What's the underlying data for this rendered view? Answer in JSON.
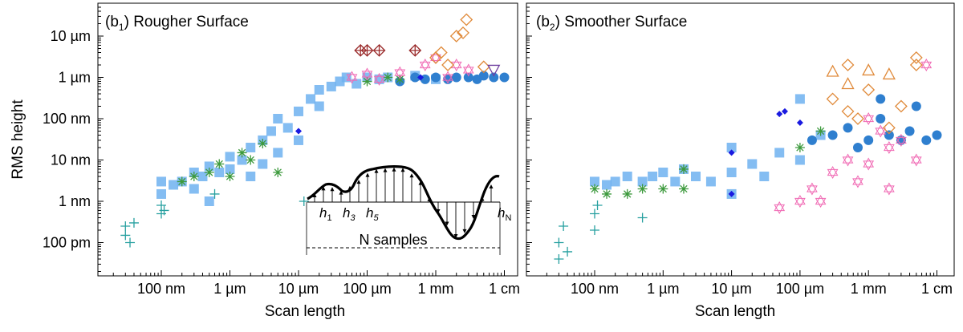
{
  "y_axis_label": "RMS height",
  "y_ticks": [
    "10 µm",
    "1 µm",
    "100 nm",
    "10 nm",
    "1 nm",
    "100 pm"
  ],
  "x_ticks": [
    "100 nm",
    "1 µm",
    "10 µm",
    "100 µm",
    "1 mm",
    "1 cm"
  ],
  "x_axis_label": "Scan length",
  "colors": {
    "light_blue": "#6eb1f0",
    "dark_blue": "#2f7fcf",
    "green": "#3d9a3d",
    "teal": "#27a0a0",
    "pink": "#f06ab4",
    "orange": "#e08a3a",
    "dark_red": "#9b2d2d",
    "purple": "#7040a0",
    "blue_diamond": "#1a1ae0"
  },
  "inset": {
    "labels": [
      {
        "main": "h",
        "sub": "1"
      },
      {
        "main": "h",
        "sub": "3"
      },
      {
        "main": "h",
        "sub": "5"
      },
      {
        "main": "h",
        "sub": "N"
      }
    ],
    "samples_label": "N samples"
  },
  "chart_data": [
    {
      "type": "scatter",
      "title": "(b1) Rougher Surface",
      "title_prefix": "(b",
      "title_sub": "1",
      "title_suffix": ") Rougher Surface",
      "xlabel": "Scan length",
      "ylabel": "RMS height",
      "x_scale": "log",
      "y_scale": "log",
      "xlim": [
        "10 nm",
        "2 cm"
      ],
      "ylim": [
        "20 pm",
        "40 µm"
      ],
      "series": [
        {
          "marker": "square",
          "color": "light_blue",
          "points": [
            [
              "100 nm",
              "3 nm"
            ],
            [
              "100 nm",
              "1.5 nm"
            ],
            [
              "150 nm",
              "2.5 nm"
            ],
            [
              "200 nm",
              "3 nm"
            ],
            [
              "300 nm",
              "5 nm"
            ],
            [
              "300 nm",
              "2 nm"
            ],
            [
              "400 nm",
              "4 nm"
            ],
            [
              "500 nm",
              "1 nm"
            ],
            [
              "500 nm",
              "7 nm"
            ],
            [
              "700 nm",
              "5 nm"
            ],
            [
              "1 µm",
              "6 nm"
            ],
            [
              "1 µm",
              "12 nm"
            ],
            [
              "1.5 µm",
              "10 nm"
            ],
            [
              "2 µm",
              "20 nm"
            ],
            [
              "2 µm",
              "4 nm"
            ],
            [
              "3 µm",
              "30 nm"
            ],
            [
              "3 µm",
              "8 nm"
            ],
            [
              "4 µm",
              "50 nm"
            ],
            [
              "5 µm",
              "15 nm"
            ],
            [
              "5 µm",
              "100 nm"
            ],
            [
              "7 µm",
              "60 nm"
            ],
            [
              "10 µm",
              "150 nm"
            ],
            [
              "10 µm",
              "30 nm"
            ],
            [
              "15 µm",
              "300 nm"
            ],
            [
              "20 µm",
              "200 nm"
            ],
            [
              "20 µm",
              "500 nm"
            ],
            [
              "30 µm",
              "600 nm"
            ],
            [
              "40 µm",
              "800 nm"
            ],
            [
              "50 µm",
              "1 µm"
            ],
            [
              "70 µm",
              "700 nm"
            ],
            [
              "100 µm",
              "1 µm"
            ],
            [
              "150 µm",
              "900 nm"
            ],
            [
              "200 µm",
              "1 µm"
            ],
            [
              "500 µm",
              "1.1 µm"
            ],
            [
              "1 mm",
              "900 nm"
            ]
          ]
        },
        {
          "marker": "circle",
          "color": "dark_blue",
          "points": [
            [
              "300 µm",
              "800 nm"
            ],
            [
              "500 µm",
              "1 µm"
            ],
            [
              "700 µm",
              "900 nm"
            ],
            [
              "1 mm",
              "1 µm"
            ],
            [
              "1.5 mm",
              "900 nm"
            ],
            [
              "2 mm",
              "1 µm"
            ],
            [
              "3 mm",
              "1 µm"
            ],
            [
              "4 mm",
              "900 nm"
            ],
            [
              "5 mm",
              "1.1 µm"
            ],
            [
              "7 mm",
              "1 µm"
            ],
            [
              "1 cm",
              "1 µm"
            ]
          ]
        },
        {
          "marker": "asterisk",
          "color": "green",
          "points": [
            [
              "200 nm",
              "3 nm"
            ],
            [
              "300 nm",
              "4 nm"
            ],
            [
              "500 nm",
              "5 nm"
            ],
            [
              "700 nm",
              "8 nm"
            ],
            [
              "1 µm",
              "4 nm"
            ],
            [
              "1.5 µm",
              "15 nm"
            ],
            [
              "2 µm",
              "10 nm"
            ],
            [
              "3 µm",
              "25 nm"
            ],
            [
              "5 µm",
              "5 nm"
            ],
            [
              "100 µm",
              "800 nm"
            ],
            [
              "200 µm",
              "1 µm"
            ],
            [
              "300 µm",
              "900 nm"
            ]
          ]
        },
        {
          "marker": "plus",
          "color": "teal",
          "points": [
            [
              "30 nm",
              "150 pm"
            ],
            [
              "30 nm",
              "250 pm"
            ],
            [
              "35 nm",
              "100 pm"
            ],
            [
              "40 nm",
              "300 pm"
            ],
            [
              "100 nm",
              "500 pm"
            ],
            [
              "100 nm",
              "800 pm"
            ],
            [
              "110 nm",
              "600 pm"
            ],
            [
              "600 nm",
              "1.5 nm"
            ],
            [
              "12 µm",
              "1 nm"
            ]
          ]
        },
        {
          "marker": "star",
          "color": "pink",
          "points": [
            [
              "60 µm",
              "1 µm"
            ],
            [
              "100 µm",
              "1.2 µm"
            ],
            [
              "150 µm",
              "900 nm"
            ],
            [
              "300 µm",
              "1.3 µm"
            ],
            [
              "700 µm",
              "2 µm"
            ],
            [
              "1 mm",
              "3 µm"
            ],
            [
              "1.5 mm",
              "1 µm"
            ],
            [
              "2 mm",
              "2 µm"
            ],
            [
              "3 mm",
              "1.5 µm"
            ]
          ]
        },
        {
          "marker": "diamond",
          "color": "orange",
          "points": [
            [
              "1 mm",
              "3 µm"
            ],
            [
              "1.2 mm",
              "4 µm"
            ],
            [
              "2 mm",
              "10 µm"
            ],
            [
              "2.5 mm",
              "12 µm"
            ],
            [
              "2.8 mm",
              "25 µm"
            ],
            [
              "1.5 mm",
              "2 µm"
            ],
            [
              "5 mm",
              "1.8 µm"
            ]
          ]
        },
        {
          "marker": "crossed-diamond",
          "color": "dark_red",
          "points": [
            [
              "80 µm",
              "4.5 µm"
            ],
            [
              "100 µm",
              "4.5 µm"
            ],
            [
              "150 µm",
              "4.5 µm"
            ],
            [
              "500 µm",
              "4.5 µm"
            ]
          ]
        },
        {
          "marker": "triangle-down",
          "color": "purple",
          "points": [
            [
              "7 mm",
              "1.5 µm"
            ]
          ]
        },
        {
          "marker": "filled-diamond",
          "color": "blue_diamond",
          "points": [
            [
              "10 µm",
              "50 nm"
            ],
            [
              "600 µm",
              "1 µm"
            ]
          ]
        }
      ]
    },
    {
      "type": "scatter",
      "title": "(b2) Smoother Surface",
      "title_prefix": "(b",
      "title_sub": "2",
      "title_suffix": ") Smoother Surface",
      "xlabel": "Scan length",
      "x_scale": "log",
      "y_scale": "log",
      "xlim": [
        "10 nm",
        "2 cm"
      ],
      "ylim": [
        "20 pm",
        "40 µm"
      ],
      "series": [
        {
          "marker": "square",
          "color": "light_blue",
          "points": [
            [
              "100 nm",
              "3 nm"
            ],
            [
              "150 nm",
              "2.5 nm"
            ],
            [
              "200 nm",
              "3 nm"
            ],
            [
              "300 nm",
              "4 nm"
            ],
            [
              "500 nm",
              "3 nm"
            ],
            [
              "700 nm",
              "4 nm"
            ],
            [
              "1 µm",
              "5 nm"
            ],
            [
              "1.5 µm",
              "3 nm"
            ],
            [
              "2 µm",
              "6 nm"
            ],
            [
              "3 µm",
              "4 nm"
            ],
            [
              "5 µm",
              "3 nm"
            ],
            [
              "10 µm",
              "5 nm"
            ],
            [
              "10 µm",
              "20 nm"
            ],
            [
              "10 µm",
              "1.5 nm"
            ],
            [
              "20 µm",
              "8 nm"
            ],
            [
              "30 µm",
              "4 nm"
            ],
            [
              "50 µm",
              "15 nm"
            ],
            [
              "100 µm",
              "10 nm"
            ],
            [
              "100 µm",
              "300 nm"
            ],
            [
              "200 µm",
              "40 nm"
            ]
          ]
        },
        {
          "marker": "circle",
          "color": "dark_blue",
          "points": [
            [
              "150 µm",
              "30 nm"
            ],
            [
              "300 µm",
              "40 nm"
            ],
            [
              "500 µm",
              "60 nm"
            ],
            [
              "700 µm",
              "20 nm"
            ],
            [
              "1 mm",
              "30 nm"
            ],
            [
              "1.5 mm",
              "100 nm"
            ],
            [
              "1.5 mm",
              "300 nm"
            ],
            [
              "2 mm",
              "40 nm"
            ],
            [
              "3 mm",
              "30 nm"
            ],
            [
              "4 mm",
              "50 nm"
            ],
            [
              "5 mm",
              "200 nm"
            ],
            [
              "7 mm",
              "30 nm"
            ],
            [
              "1 cm",
              "40 nm"
            ]
          ]
        },
        {
          "marker": "asterisk",
          "color": "green",
          "points": [
            [
              "100 nm",
              "2 nm"
            ],
            [
              "150 nm",
              "1.5 nm"
            ],
            [
              "300 nm",
              "1.5 nm"
            ],
            [
              "500 nm",
              "2 nm"
            ],
            [
              "1 µm",
              "2 nm"
            ],
            [
              "2 µm",
              "2 nm"
            ],
            [
              "2 µm",
              "6 nm"
            ],
            [
              "100 µm",
              "20 nm"
            ],
            [
              "200 µm",
              "50 nm"
            ]
          ]
        },
        {
          "marker": "plus",
          "color": "teal",
          "points": [
            [
              "30 nm",
              "100 pm"
            ],
            [
              "30 nm",
              "40 pm"
            ],
            [
              "35 nm",
              "250 pm"
            ],
            [
              "40 nm",
              "60 pm"
            ],
            [
              "100 nm",
              "200 pm"
            ],
            [
              "100 nm",
              "500 pm"
            ],
            [
              "110 nm",
              "800 pm"
            ],
            [
              "500 nm",
              "400 pm"
            ]
          ]
        },
        {
          "marker": "star",
          "color": "pink",
          "points": [
            [
              "150 µm",
              "2 nm"
            ],
            [
              "200 µm",
              "1 nm"
            ],
            [
              "300 µm",
              "5 nm"
            ],
            [
              "500 µm",
              "10 nm"
            ],
            [
              "700 µm",
              "3 nm"
            ],
            [
              "1 mm",
              "8 nm"
            ],
            [
              "1 mm",
              "100 nm"
            ],
            [
              "1.5 mm",
              "50 nm"
            ],
            [
              "2 mm",
              "20 nm"
            ],
            [
              "2 mm",
              "2 nm"
            ],
            [
              "3 mm",
              "30 nm"
            ],
            [
              "5 mm",
              "10 nm"
            ],
            [
              "7 mm",
              "2 µm"
            ],
            [
              "100 µm",
              "1 nm"
            ],
            [
              "50 µm",
              "700 pm"
            ]
          ]
        },
        {
          "marker": "diamond",
          "color": "orange",
          "points": [
            [
              "300 µm",
              "300 nm"
            ],
            [
              "500 µm",
              "150 nm"
            ],
            [
              "500 µm",
              "2 µm"
            ],
            [
              "700 µm",
              "100 nm"
            ],
            [
              "1 mm",
              "500 nm"
            ],
            [
              "2 mm",
              "60 nm"
            ],
            [
              "3 mm",
              "200 nm"
            ],
            [
              "5 mm",
              "2 µm"
            ],
            [
              "5 mm",
              "3 µm"
            ]
          ]
        },
        {
          "marker": "triangle",
          "color": "orange",
          "points": [
            [
              "300 µm",
              "1.4 µm"
            ],
            [
              "500 µm",
              "700 nm"
            ],
            [
              "1 mm",
              "1.5 µm"
            ],
            [
              "2 mm",
              "1.2 µm"
            ]
          ]
        },
        {
          "marker": "filled-diamond",
          "color": "blue_diamond",
          "points": [
            [
              "10 µm",
              "15 nm"
            ],
            [
              "10 µm",
              "1.5 nm"
            ],
            [
              "50 µm",
              "130 nm"
            ],
            [
              "60 µm",
              "150 nm"
            ],
            [
              "100 µm",
              "80 nm"
            ]
          ]
        }
      ]
    }
  ]
}
